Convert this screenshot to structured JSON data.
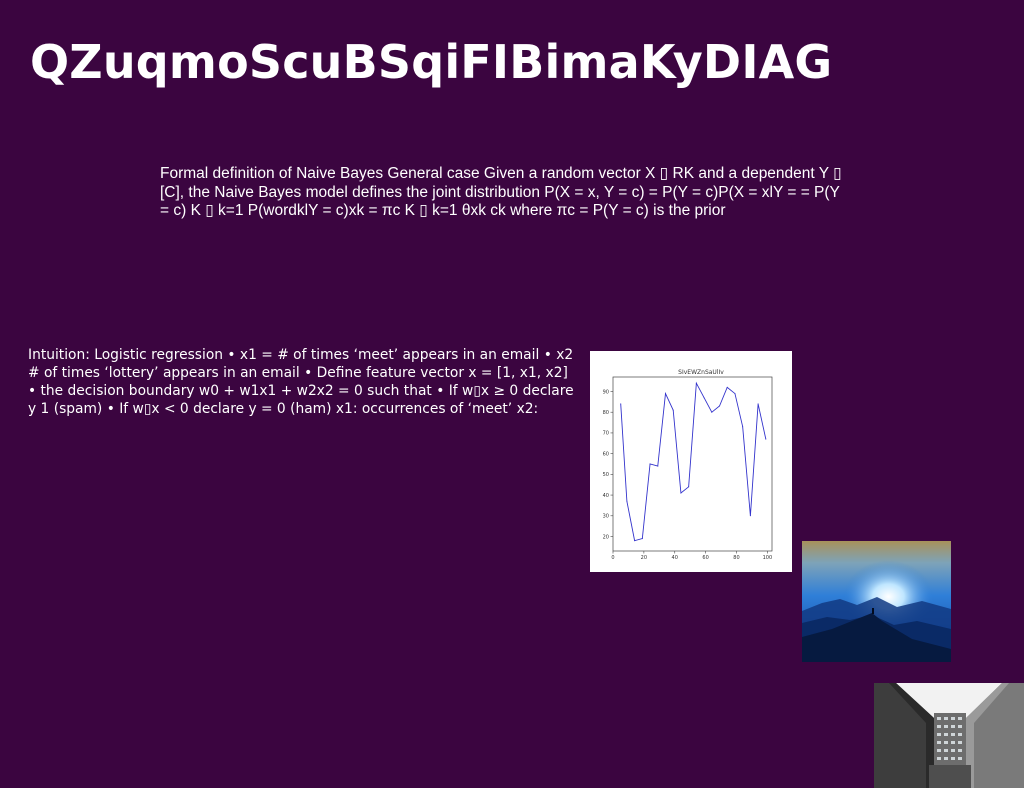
{
  "slide": {
    "title": "QZuqmoScuBSqiFIBimaKyDIAG",
    "paragraph_1": "Formal definition of Naive Bayes General case Given a random vector X ▯ RK and a dependent Y ▯ [C], the Naive Bayes model defines the joint distribution P(X = x, Y = c) = P(Y = c)P(X = xlY = = P(Y = c) K ▯ k=1 P(wordklY = c)xk = πc K ▯ k=1 θxk ck where πc = P(Y = c) is the prior",
    "paragraph_2": "Intuition: Logistic regression • x1 = # of times ‘meet’ appears in an email • x2 # of times ‘lottery’ appears in an email • Define feature vector x = [1, x1, x2] • the decision boundary w0 + w1x1 + w2x2 = 0 such that • If w▯x ≥ 0 declare y 1 (spam) • If w▯x < 0 declare y = 0 (ham) x1: occurrences of ‘meet’ x2:"
  },
  "chart_data": {
    "type": "line",
    "title": "SIvEWZnSaUlIv",
    "xlabel": "",
    "ylabel": "",
    "xlim": [
      0,
      103
    ],
    "ylim": [
      13,
      97
    ],
    "xticks": [
      0,
      20,
      40,
      60,
      80,
      100
    ],
    "yticks": [
      20,
      30,
      40,
      50,
      60,
      70,
      80,
      90
    ],
    "grid": false,
    "series": [
      {
        "color": "#3333cc",
        "x": [
          5,
          9,
          14,
          19,
          24,
          29,
          34,
          39,
          44,
          49,
          54,
          59,
          64,
          69,
          74,
          79,
          84,
          89,
          94,
          99
        ],
        "y": [
          84,
          37,
          18,
          19,
          55,
          54,
          89,
          81,
          41,
          44,
          94,
          87,
          80,
          83,
          92,
          89,
          73,
          30,
          84,
          67
        ]
      }
    ]
  },
  "images": {
    "photo_1": "mountain-sunrise-photo",
    "photo_2": "building-looking-up-photo"
  }
}
